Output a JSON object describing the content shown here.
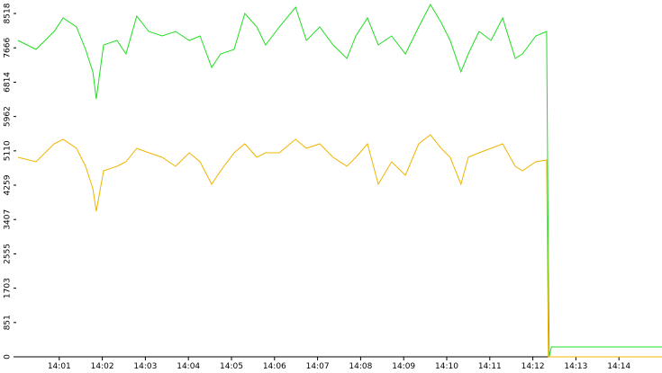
{
  "chart_data": {
    "type": "line",
    "x": [
      0.04,
      0.46,
      0.88,
      1.09,
      1.4,
      1.61,
      1.78,
      1.86,
      2.03,
      2.34,
      2.55,
      2.8,
      3.08,
      3.39,
      3.7,
      4.02,
      4.27,
      4.54,
      4.75,
      5.06,
      5.31,
      5.59,
      5.79,
      6.11,
      6.49,
      6.74,
      7.05,
      7.36,
      7.68,
      7.89,
      8.16,
      8.41,
      8.72,
      9.04,
      9.35,
      9.62,
      9.87,
      10.08,
      10.33,
      10.5,
      10.75,
      11.03,
      11.3,
      11.59,
      11.76,
      12.07,
      12.32,
      12.36,
      12.38,
      12.43,
      15.0
    ],
    "series": [
      {
        "color": "#22dd22",
        "values": [
          7850,
          7627,
          8073,
          8407,
          8184,
          7627,
          7069,
          6400,
          7738,
          7850,
          7515,
          8452,
          8073,
          7961,
          8073,
          7850,
          7961,
          7181,
          7515,
          7627,
          8518,
          8184,
          7738,
          8184,
          8674,
          7850,
          8184,
          7738,
          7404,
          7961,
          8407,
          7738,
          7961,
          7515,
          8184,
          8742,
          8296,
          7850,
          7069,
          7515,
          8073,
          7850,
          8407,
          7404,
          7515,
          7961,
          8073,
          2386,
          0,
          245,
          245
        ]
      },
      {
        "color": "#f0b400",
        "values": [
          4950,
          4839,
          5285,
          5397,
          5174,
          4728,
          4170,
          3613,
          4616,
          4728,
          4839,
          5174,
          5062,
          4950,
          4728,
          5062,
          4839,
          4282,
          4616,
          5062,
          5285,
          4950,
          5062,
          5062,
          5397,
          5174,
          5285,
          4950,
          4728,
          4950,
          5285,
          4282,
          4839,
          4505,
          5285,
          5508,
          5174,
          4950,
          4282,
          4950,
          5062,
          5174,
          5285,
          4728,
          4616,
          4839,
          4884,
          0,
          0,
          0,
          0
        ]
      }
    ],
    "xlim": [
      0,
      15
    ],
    "xticks": [
      {
        "value": 1,
        "label": "14:01"
      },
      {
        "value": 2,
        "label": "14:02"
      },
      {
        "value": 3,
        "label": "14:03"
      },
      {
        "value": 4,
        "label": "14:04"
      },
      {
        "value": 5,
        "label": "14:05"
      },
      {
        "value": 6,
        "label": "14:06"
      },
      {
        "value": 7,
        "label": "14:07"
      },
      {
        "value": 8,
        "label": "14:08"
      },
      {
        "value": 9,
        "label": "14:09"
      },
      {
        "value": 10,
        "label": "14:10"
      },
      {
        "value": 11,
        "label": "14:11"
      },
      {
        "value": 12,
        "label": "14:12"
      },
      {
        "value": 13,
        "label": "14:13"
      },
      {
        "value": 14,
        "label": "14:14"
      }
    ],
    "ylim": [
      0,
      8853
    ],
    "yticks": [
      0,
      851,
      1703,
      2555,
      3407,
      4259,
      5110,
      5962,
      6814,
      7666,
      8518
    ]
  }
}
